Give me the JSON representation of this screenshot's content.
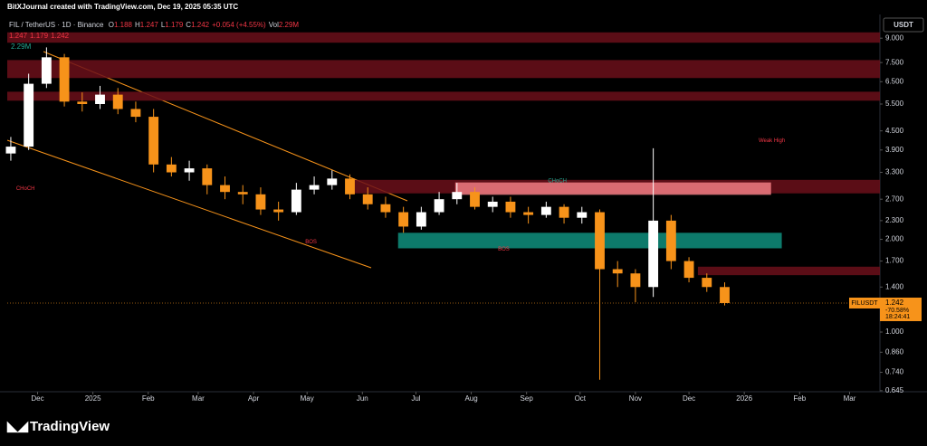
{
  "header": {
    "attribution": "BitXJournal created with TradingView.com, Dec 19, 2025 05:35 UTC",
    "symbol": "FIL / TetherUS · 1D · Binance",
    "ohlc": [
      {
        "label": "O",
        "value": "1.188"
      },
      {
        "label": "H",
        "value": "1.247"
      },
      {
        "label": "L",
        "value": "1.179"
      },
      {
        "label": "C",
        "value": "1.242"
      }
    ],
    "change": "+0.054 (+4.55%)",
    "volume_label": "Vol",
    "volume": "2.29M",
    "line2": [
      "1.247",
      "1.179",
      "1.242"
    ],
    "line3": "2.29M",
    "currency": "USDT"
  },
  "price_label": {
    "symbol": "FILUSDT",
    "change": "-70.58%",
    "countdown": "18:24:41"
  },
  "footer": {
    "brand": "TradingView"
  },
  "chart_data": {
    "type": "candlestick",
    "log_scale": true,
    "grid": false,
    "up_color": "#ffffff",
    "down_color": "#f7931a",
    "x": [
      -15,
      -5,
      5,
      15,
      25,
      35,
      45,
      55,
      65,
      75,
      85,
      95,
      105,
      115,
      125,
      135,
      145,
      155,
      165,
      175,
      185,
      195,
      205,
      215,
      225,
      235,
      245,
      255,
      265,
      275,
      285,
      295,
      305,
      315,
      325,
      335,
      345,
      355,
      365,
      375,
      385
    ],
    "open": [
      3.8,
      4.0,
      6.4,
      7.8,
      5.6,
      5.5,
      5.9,
      5.3,
      5.0,
      3.5,
      3.3,
      3.4,
      3.0,
      2.85,
      2.8,
      2.5,
      2.45,
      2.9,
      3.0,
      3.15,
      2.8,
      2.6,
      2.45,
      2.2,
      2.45,
      2.7,
      2.85,
      2.55,
      2.65,
      2.45,
      2.4,
      2.55,
      2.35,
      2.45,
      1.6,
      1.55,
      1.4,
      2.3,
      1.7,
      1.5,
      1.4
    ],
    "high": [
      4.3,
      6.9,
      8.4,
      8.0,
      6.0,
      6.3,
      6.2,
      5.6,
      5.3,
      3.7,
      3.6,
      3.5,
      3.2,
      3.0,
      2.95,
      2.65,
      3.05,
      3.2,
      3.35,
      3.25,
      2.95,
      2.75,
      2.55,
      2.55,
      2.85,
      3.05,
      2.95,
      2.75,
      2.75,
      2.55,
      2.65,
      2.6,
      2.55,
      2.5,
      1.7,
      1.6,
      3.95,
      2.4,
      1.75,
      1.55,
      1.45
    ],
    "low": [
      3.6,
      3.9,
      6.2,
      5.4,
      5.2,
      5.3,
      5.1,
      4.8,
      3.3,
      3.2,
      3.1,
      2.8,
      2.7,
      2.6,
      2.4,
      2.3,
      2.4,
      2.8,
      2.9,
      2.7,
      2.5,
      2.35,
      2.1,
      2.15,
      2.4,
      2.6,
      2.5,
      2.45,
      2.35,
      2.25,
      2.35,
      2.25,
      2.25,
      0.7,
      1.4,
      1.25,
      1.3,
      1.6,
      1.45,
      1.35,
      1.22
    ],
    "close": [
      4.0,
      6.4,
      7.8,
      5.6,
      5.5,
      5.9,
      5.3,
      5.0,
      3.5,
      3.3,
      3.4,
      3.0,
      2.85,
      2.8,
      2.5,
      2.45,
      2.9,
      3.0,
      3.15,
      2.8,
      2.6,
      2.45,
      2.2,
      2.45,
      2.7,
      2.85,
      2.55,
      2.65,
      2.45,
      2.4,
      2.55,
      2.35,
      2.45,
      1.6,
      1.55,
      1.4,
      2.3,
      1.7,
      1.5,
      1.4,
      1.242
    ],
    "last_price": 1.242,
    "xlim": [
      -17,
      472
    ],
    "ylim": [
      0.64,
      10.6
    ],
    "xticks": [
      {
        "value": 0,
        "label": "Dec"
      },
      {
        "value": 31,
        "label": "2025"
      },
      {
        "value": 62,
        "label": "Feb"
      },
      {
        "value": 90,
        "label": "Mar"
      },
      {
        "value": 121,
        "label": "Apr"
      },
      {
        "value": 151,
        "label": "May"
      },
      {
        "value": 182,
        "label": "Jun"
      },
      {
        "value": 212,
        "label": "Jul"
      },
      {
        "value": 243,
        "label": "Aug"
      },
      {
        "value": 274,
        "label": "Sep"
      },
      {
        "value": 304,
        "label": "Oct"
      },
      {
        "value": 335,
        "label": "Nov"
      },
      {
        "value": 365,
        "label": "Dec"
      },
      {
        "value": 396,
        "label": "2026"
      },
      {
        "value": 427,
        "label": "Feb"
      },
      {
        "value": 455,
        "label": "Mar"
      }
    ],
    "yticks": [
      {
        "value": 9,
        "label": "9.000"
      },
      {
        "value": 7.5,
        "label": "7.500"
      },
      {
        "value": 6.5,
        "label": "6.500"
      },
      {
        "value": 5.5,
        "label": "5.500"
      },
      {
        "value": 4.5,
        "label": "4.500"
      },
      {
        "value": 3.9,
        "label": "3.900"
      },
      {
        "value": 3.3,
        "label": "3.300"
      },
      {
        "value": 2.7,
        "label": "2.700"
      },
      {
        "value": 2.3,
        "label": "2.300"
      },
      {
        "value": 2,
        "label": "2.000"
      },
      {
        "value": 1.7,
        "label": "1.700"
      },
      {
        "value": 1.4,
        "label": "1.400"
      },
      {
        "value": 1,
        "label": "1.000"
      },
      {
        "value": 0.86,
        "label": "0.860"
      },
      {
        "value": 0.74,
        "label": "0.740"
      },
      {
        "value": 0.645,
        "label": "0.645"
      }
    ],
    "zones": [
      {
        "start": -17,
        "end": 472,
        "low": 8.7,
        "high": 9.4,
        "color": "#6b0f1a"
      },
      {
        "start": -17,
        "end": 472,
        "low": 6.68,
        "high": 7.64,
        "color": "#6b0f1a"
      },
      {
        "start": -17,
        "end": 472,
        "low": 5.64,
        "high": 6.03,
        "color": "#6b0f1a"
      },
      {
        "start": 174,
        "end": 472,
        "low": 2.82,
        "high": 3.12,
        "color": "#6b0f1a"
      },
      {
        "start": 234,
        "end": 411,
        "low": 2.79,
        "high": 3.06,
        "color": "#f07c82"
      },
      {
        "start": 202,
        "end": 417,
        "low": 1.87,
        "high": 2.1,
        "color": "#0f8f7e"
      },
      {
        "start": 370,
        "end": 472,
        "low": 1.53,
        "high": 1.63,
        "color": "#6b0f1a"
      }
    ],
    "annotations": [
      {
        "text": "CHoCH",
        "x": -12,
        "y": 2.92,
        "color": "#f23645"
      },
      {
        "text": "BOS",
        "x": 150,
        "y": 1.96,
        "color": "#f23645"
      },
      {
        "text": "CHoCH",
        "x": 286,
        "y": 3.1,
        "color": "#22ab94"
      },
      {
        "text": "BOS",
        "x": 258,
        "y": 1.86,
        "color": "#f23645"
      },
      {
        "text": "Weak High",
        "x": 404,
        "y": 4.18,
        "color": "#f23645"
      }
    ]
  }
}
